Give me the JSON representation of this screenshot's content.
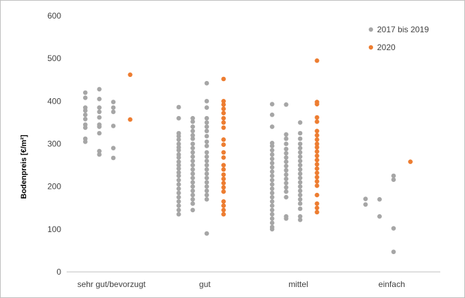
{
  "chart_data": {
    "type": "scatter",
    "title": "",
    "xlabel": "",
    "ylabel": "Bodenpreis [€/m²]",
    "categories": [
      "sehr gut/bevorzugt",
      "gut",
      "mittel",
      "einfach"
    ],
    "ylim": [
      0,
      600
    ],
    "yticks": [
      "0",
      "100",
      "200",
      "300",
      "400",
      "500",
      "600"
    ],
    "grid": false,
    "legend_position": "top-right",
    "colors": {
      "series1": "#a6a6a6",
      "series2": "#ed7d31",
      "axis": "#bfbfbf"
    },
    "series": [
      {
        "name": "2017 bis 2019",
        "points": [
          {
            "c": 0,
            "o": -0.3,
            "y": 420
          },
          {
            "c": 0,
            "o": -0.3,
            "y": 408
          },
          {
            "c": 0,
            "o": -0.3,
            "y": 385
          },
          {
            "c": 0,
            "o": -0.3,
            "y": 378
          },
          {
            "c": 0,
            "o": -0.3,
            "y": 368
          },
          {
            "c": 0,
            "o": -0.3,
            "y": 358
          },
          {
            "c": 0,
            "o": -0.3,
            "y": 345
          },
          {
            "c": 0,
            "o": -0.3,
            "y": 338
          },
          {
            "c": 0,
            "o": -0.3,
            "y": 312
          },
          {
            "c": 0,
            "o": -0.3,
            "y": 305
          },
          {
            "c": 0,
            "o": -0.15,
            "y": 428
          },
          {
            "c": 0,
            "o": -0.15,
            "y": 405
          },
          {
            "c": 0,
            "o": -0.15,
            "y": 385
          },
          {
            "c": 0,
            "o": -0.15,
            "y": 375
          },
          {
            "c": 0,
            "o": -0.15,
            "y": 362
          },
          {
            "c": 0,
            "o": -0.15,
            "y": 345
          },
          {
            "c": 0,
            "o": -0.15,
            "y": 340
          },
          {
            "c": 0,
            "o": -0.15,
            "y": 325
          },
          {
            "c": 0,
            "o": -0.15,
            "y": 283
          },
          {
            "c": 0,
            "o": -0.15,
            "y": 275
          },
          {
            "c": 0,
            "o": 0.0,
            "y": 398
          },
          {
            "c": 0,
            "o": 0.0,
            "y": 385
          },
          {
            "c": 0,
            "o": 0.0,
            "y": 375
          },
          {
            "c": 0,
            "o": 0.0,
            "y": 342
          },
          {
            "c": 0,
            "o": 0.0,
            "y": 290
          },
          {
            "c": 0,
            "o": 0.0,
            "y": 267
          },
          {
            "c": 1,
            "o": -0.3,
            "y": 386
          },
          {
            "c": 1,
            "o": -0.3,
            "y": 360
          },
          {
            "c": 1,
            "o": -0.3,
            "y": 325
          },
          {
            "c": 1,
            "o": -0.3,
            "y": 318
          },
          {
            "c": 1,
            "o": -0.3,
            "y": 310
          },
          {
            "c": 1,
            "o": -0.3,
            "y": 300
          },
          {
            "c": 1,
            "o": -0.3,
            "y": 292
          },
          {
            "c": 1,
            "o": -0.3,
            "y": 285
          },
          {
            "c": 1,
            "o": -0.3,
            "y": 275
          },
          {
            "c": 1,
            "o": -0.3,
            "y": 268
          },
          {
            "c": 1,
            "o": -0.3,
            "y": 258
          },
          {
            "c": 1,
            "o": -0.3,
            "y": 250
          },
          {
            "c": 1,
            "o": -0.3,
            "y": 242
          },
          {
            "c": 1,
            "o": -0.3,
            "y": 233
          },
          {
            "c": 1,
            "o": -0.3,
            "y": 225
          },
          {
            "c": 1,
            "o": -0.3,
            "y": 215
          },
          {
            "c": 1,
            "o": -0.3,
            "y": 205
          },
          {
            "c": 1,
            "o": -0.3,
            "y": 195
          },
          {
            "c": 1,
            "o": -0.3,
            "y": 185
          },
          {
            "c": 1,
            "o": -0.3,
            "y": 175
          },
          {
            "c": 1,
            "o": -0.3,
            "y": 165
          },
          {
            "c": 1,
            "o": -0.3,
            "y": 155
          },
          {
            "c": 1,
            "o": -0.3,
            "y": 145
          },
          {
            "c": 1,
            "o": -0.3,
            "y": 135
          },
          {
            "c": 1,
            "o": -0.15,
            "y": 360
          },
          {
            "c": 1,
            "o": -0.15,
            "y": 352
          },
          {
            "c": 1,
            "o": -0.15,
            "y": 340
          },
          {
            "c": 1,
            "o": -0.15,
            "y": 330
          },
          {
            "c": 1,
            "o": -0.15,
            "y": 320
          },
          {
            "c": 1,
            "o": -0.15,
            "y": 312
          },
          {
            "c": 1,
            "o": -0.15,
            "y": 300
          },
          {
            "c": 1,
            "o": -0.15,
            "y": 290
          },
          {
            "c": 1,
            "o": -0.15,
            "y": 280
          },
          {
            "c": 1,
            "o": -0.15,
            "y": 270
          },
          {
            "c": 1,
            "o": -0.15,
            "y": 260
          },
          {
            "c": 1,
            "o": -0.15,
            "y": 250
          },
          {
            "c": 1,
            "o": -0.15,
            "y": 240
          },
          {
            "c": 1,
            "o": -0.15,
            "y": 230
          },
          {
            "c": 1,
            "o": -0.15,
            "y": 220
          },
          {
            "c": 1,
            "o": -0.15,
            "y": 210
          },
          {
            "c": 1,
            "o": -0.15,
            "y": 200
          },
          {
            "c": 1,
            "o": -0.15,
            "y": 190
          },
          {
            "c": 1,
            "o": -0.15,
            "y": 180
          },
          {
            "c": 1,
            "o": -0.15,
            "y": 170
          },
          {
            "c": 1,
            "o": -0.15,
            "y": 160
          },
          {
            "c": 1,
            "o": -0.15,
            "y": 145
          },
          {
            "c": 1,
            "o": 0.0,
            "y": 442
          },
          {
            "c": 1,
            "o": 0.0,
            "y": 400
          },
          {
            "c": 1,
            "o": 0.0,
            "y": 385
          },
          {
            "c": 1,
            "o": 0.0,
            "y": 360
          },
          {
            "c": 1,
            "o": 0.0,
            "y": 350
          },
          {
            "c": 1,
            "o": 0.0,
            "y": 340
          },
          {
            "c": 1,
            "o": 0.0,
            "y": 330
          },
          {
            "c": 1,
            "o": 0.0,
            "y": 318
          },
          {
            "c": 1,
            "o": 0.0,
            "y": 305
          },
          {
            "c": 1,
            "o": 0.0,
            "y": 295
          },
          {
            "c": 1,
            "o": 0.0,
            "y": 280
          },
          {
            "c": 1,
            "o": 0.0,
            "y": 270
          },
          {
            "c": 1,
            "o": 0.0,
            "y": 260
          },
          {
            "c": 1,
            "o": 0.0,
            "y": 250
          },
          {
            "c": 1,
            "o": 0.0,
            "y": 240
          },
          {
            "c": 1,
            "o": 0.0,
            "y": 230
          },
          {
            "c": 1,
            "o": 0.0,
            "y": 220
          },
          {
            "c": 1,
            "o": 0.0,
            "y": 210
          },
          {
            "c": 1,
            "o": 0.0,
            "y": 200
          },
          {
            "c": 1,
            "o": 0.0,
            "y": 190
          },
          {
            "c": 1,
            "o": 0.0,
            "y": 180
          },
          {
            "c": 1,
            "o": 0.0,
            "y": 170
          },
          {
            "c": 1,
            "o": 0.0,
            "y": 90
          },
          {
            "c": 2,
            "o": -0.3,
            "y": 393
          },
          {
            "c": 2,
            "o": -0.3,
            "y": 368
          },
          {
            "c": 2,
            "o": -0.3,
            "y": 340
          },
          {
            "c": 2,
            "o": -0.3,
            "y": 302
          },
          {
            "c": 2,
            "o": -0.3,
            "y": 295
          },
          {
            "c": 2,
            "o": -0.3,
            "y": 285
          },
          {
            "c": 2,
            "o": -0.3,
            "y": 275
          },
          {
            "c": 2,
            "o": -0.3,
            "y": 265
          },
          {
            "c": 2,
            "o": -0.3,
            "y": 255
          },
          {
            "c": 2,
            "o": -0.3,
            "y": 245
          },
          {
            "c": 2,
            "o": -0.3,
            "y": 235
          },
          {
            "c": 2,
            "o": -0.3,
            "y": 225
          },
          {
            "c": 2,
            "o": -0.3,
            "y": 215
          },
          {
            "c": 2,
            "o": -0.3,
            "y": 205
          },
          {
            "c": 2,
            "o": -0.3,
            "y": 195
          },
          {
            "c": 2,
            "o": -0.3,
            "y": 185
          },
          {
            "c": 2,
            "o": -0.3,
            "y": 175
          },
          {
            "c": 2,
            "o": -0.3,
            "y": 165
          },
          {
            "c": 2,
            "o": -0.3,
            "y": 155
          },
          {
            "c": 2,
            "o": -0.3,
            "y": 145
          },
          {
            "c": 2,
            "o": -0.3,
            "y": 135
          },
          {
            "c": 2,
            "o": -0.3,
            "y": 125
          },
          {
            "c": 2,
            "o": -0.3,
            "y": 115
          },
          {
            "c": 2,
            "o": -0.3,
            "y": 105
          },
          {
            "c": 2,
            "o": -0.3,
            "y": 100
          },
          {
            "c": 2,
            "o": -0.15,
            "y": 392
          },
          {
            "c": 2,
            "o": -0.15,
            "y": 322
          },
          {
            "c": 2,
            "o": -0.15,
            "y": 312
          },
          {
            "c": 2,
            "o": -0.15,
            "y": 300
          },
          {
            "c": 2,
            "o": -0.15,
            "y": 288
          },
          {
            "c": 2,
            "o": -0.15,
            "y": 278
          },
          {
            "c": 2,
            "o": -0.15,
            "y": 268
          },
          {
            "c": 2,
            "o": -0.15,
            "y": 258
          },
          {
            "c": 2,
            "o": -0.15,
            "y": 248
          },
          {
            "c": 2,
            "o": -0.15,
            "y": 238
          },
          {
            "c": 2,
            "o": -0.15,
            "y": 228
          },
          {
            "c": 2,
            "o": -0.15,
            "y": 218
          },
          {
            "c": 2,
            "o": -0.15,
            "y": 208
          },
          {
            "c": 2,
            "o": -0.15,
            "y": 198
          },
          {
            "c": 2,
            "o": -0.15,
            "y": 188
          },
          {
            "c": 2,
            "o": -0.15,
            "y": 175
          },
          {
            "c": 2,
            "o": -0.15,
            "y": 130
          },
          {
            "c": 2,
            "o": -0.15,
            "y": 125
          },
          {
            "c": 2,
            "o": 0.0,
            "y": 350
          },
          {
            "c": 2,
            "o": 0.0,
            "y": 325
          },
          {
            "c": 2,
            "o": 0.0,
            "y": 312
          },
          {
            "c": 2,
            "o": 0.0,
            "y": 300
          },
          {
            "c": 2,
            "o": 0.0,
            "y": 290
          },
          {
            "c": 2,
            "o": 0.0,
            "y": 280
          },
          {
            "c": 2,
            "o": 0.0,
            "y": 270
          },
          {
            "c": 2,
            "o": 0.0,
            "y": 260
          },
          {
            "c": 2,
            "o": 0.0,
            "y": 250
          },
          {
            "c": 2,
            "o": 0.0,
            "y": 240
          },
          {
            "c": 2,
            "o": 0.0,
            "y": 230
          },
          {
            "c": 2,
            "o": 0.0,
            "y": 220
          },
          {
            "c": 2,
            "o": 0.0,
            "y": 210
          },
          {
            "c": 2,
            "o": 0.0,
            "y": 200
          },
          {
            "c": 2,
            "o": 0.0,
            "y": 190
          },
          {
            "c": 2,
            "o": 0.0,
            "y": 180
          },
          {
            "c": 2,
            "o": 0.0,
            "y": 170
          },
          {
            "c": 2,
            "o": 0.0,
            "y": 160
          },
          {
            "c": 2,
            "o": 0.0,
            "y": 148
          },
          {
            "c": 2,
            "o": 0.0,
            "y": 130
          },
          {
            "c": 2,
            "o": 0.0,
            "y": 122
          },
          {
            "c": 3,
            "o": -0.3,
            "y": 171
          },
          {
            "c": 3,
            "o": -0.3,
            "y": 158
          },
          {
            "c": 3,
            "o": -0.15,
            "y": 170
          },
          {
            "c": 3,
            "o": -0.15,
            "y": 130
          },
          {
            "c": 3,
            "o": 0.0,
            "y": 225
          },
          {
            "c": 3,
            "o": 0.0,
            "y": 216
          },
          {
            "c": 3,
            "o": 0.0,
            "y": 102
          },
          {
            "c": 3,
            "o": 0.0,
            "y": 47
          }
        ]
      },
      {
        "name": "2020",
        "points": [
          {
            "c": 0,
            "o": 0.18,
            "y": 462
          },
          {
            "c": 0,
            "o": 0.18,
            "y": 357
          },
          {
            "c": 1,
            "o": 0.18,
            "y": 452
          },
          {
            "c": 1,
            "o": 0.18,
            "y": 400
          },
          {
            "c": 1,
            "o": 0.18,
            "y": 392
          },
          {
            "c": 1,
            "o": 0.18,
            "y": 382
          },
          {
            "c": 1,
            "o": 0.18,
            "y": 372
          },
          {
            "c": 1,
            "o": 0.18,
            "y": 360
          },
          {
            "c": 1,
            "o": 0.18,
            "y": 350
          },
          {
            "c": 1,
            "o": 0.18,
            "y": 338
          },
          {
            "c": 1,
            "o": 0.18,
            "y": 310
          },
          {
            "c": 1,
            "o": 0.18,
            "y": 298
          },
          {
            "c": 1,
            "o": 0.18,
            "y": 280
          },
          {
            "c": 1,
            "o": 0.18,
            "y": 268
          },
          {
            "c": 1,
            "o": 0.18,
            "y": 250
          },
          {
            "c": 1,
            "o": 0.18,
            "y": 240
          },
          {
            "c": 1,
            "o": 0.18,
            "y": 228
          },
          {
            "c": 1,
            "o": 0.18,
            "y": 218
          },
          {
            "c": 1,
            "o": 0.18,
            "y": 208
          },
          {
            "c": 1,
            "o": 0.18,
            "y": 198
          },
          {
            "c": 1,
            "o": 0.18,
            "y": 188
          },
          {
            "c": 1,
            "o": 0.18,
            "y": 165
          },
          {
            "c": 1,
            "o": 0.18,
            "y": 155
          },
          {
            "c": 1,
            "o": 0.18,
            "y": 145
          },
          {
            "c": 1,
            "o": 0.18,
            "y": 135
          },
          {
            "c": 2,
            "o": 0.18,
            "y": 495
          },
          {
            "c": 2,
            "o": 0.18,
            "y": 398
          },
          {
            "c": 2,
            "o": 0.18,
            "y": 393
          },
          {
            "c": 2,
            "o": 0.18,
            "y": 362
          },
          {
            "c": 2,
            "o": 0.18,
            "y": 352
          },
          {
            "c": 2,
            "o": 0.18,
            "y": 330
          },
          {
            "c": 2,
            "o": 0.18,
            "y": 320
          },
          {
            "c": 2,
            "o": 0.18,
            "y": 310
          },
          {
            "c": 2,
            "o": 0.18,
            "y": 300
          },
          {
            "c": 2,
            "o": 0.18,
            "y": 292
          },
          {
            "c": 2,
            "o": 0.18,
            "y": 282
          },
          {
            "c": 2,
            "o": 0.18,
            "y": 272
          },
          {
            "c": 2,
            "o": 0.18,
            "y": 262
          },
          {
            "c": 2,
            "o": 0.18,
            "y": 252
          },
          {
            "c": 2,
            "o": 0.18,
            "y": 242
          },
          {
            "c": 2,
            "o": 0.18,
            "y": 232
          },
          {
            "c": 2,
            "o": 0.18,
            "y": 222
          },
          {
            "c": 2,
            "o": 0.18,
            "y": 212
          },
          {
            "c": 2,
            "o": 0.18,
            "y": 202
          },
          {
            "c": 2,
            "o": 0.18,
            "y": 180
          },
          {
            "c": 2,
            "o": 0.18,
            "y": 160
          },
          {
            "c": 2,
            "o": 0.18,
            "y": 150
          },
          {
            "c": 2,
            "o": 0.18,
            "y": 140
          },
          {
            "c": 3,
            "o": 0.18,
            "y": 258
          }
        ]
      }
    ]
  }
}
